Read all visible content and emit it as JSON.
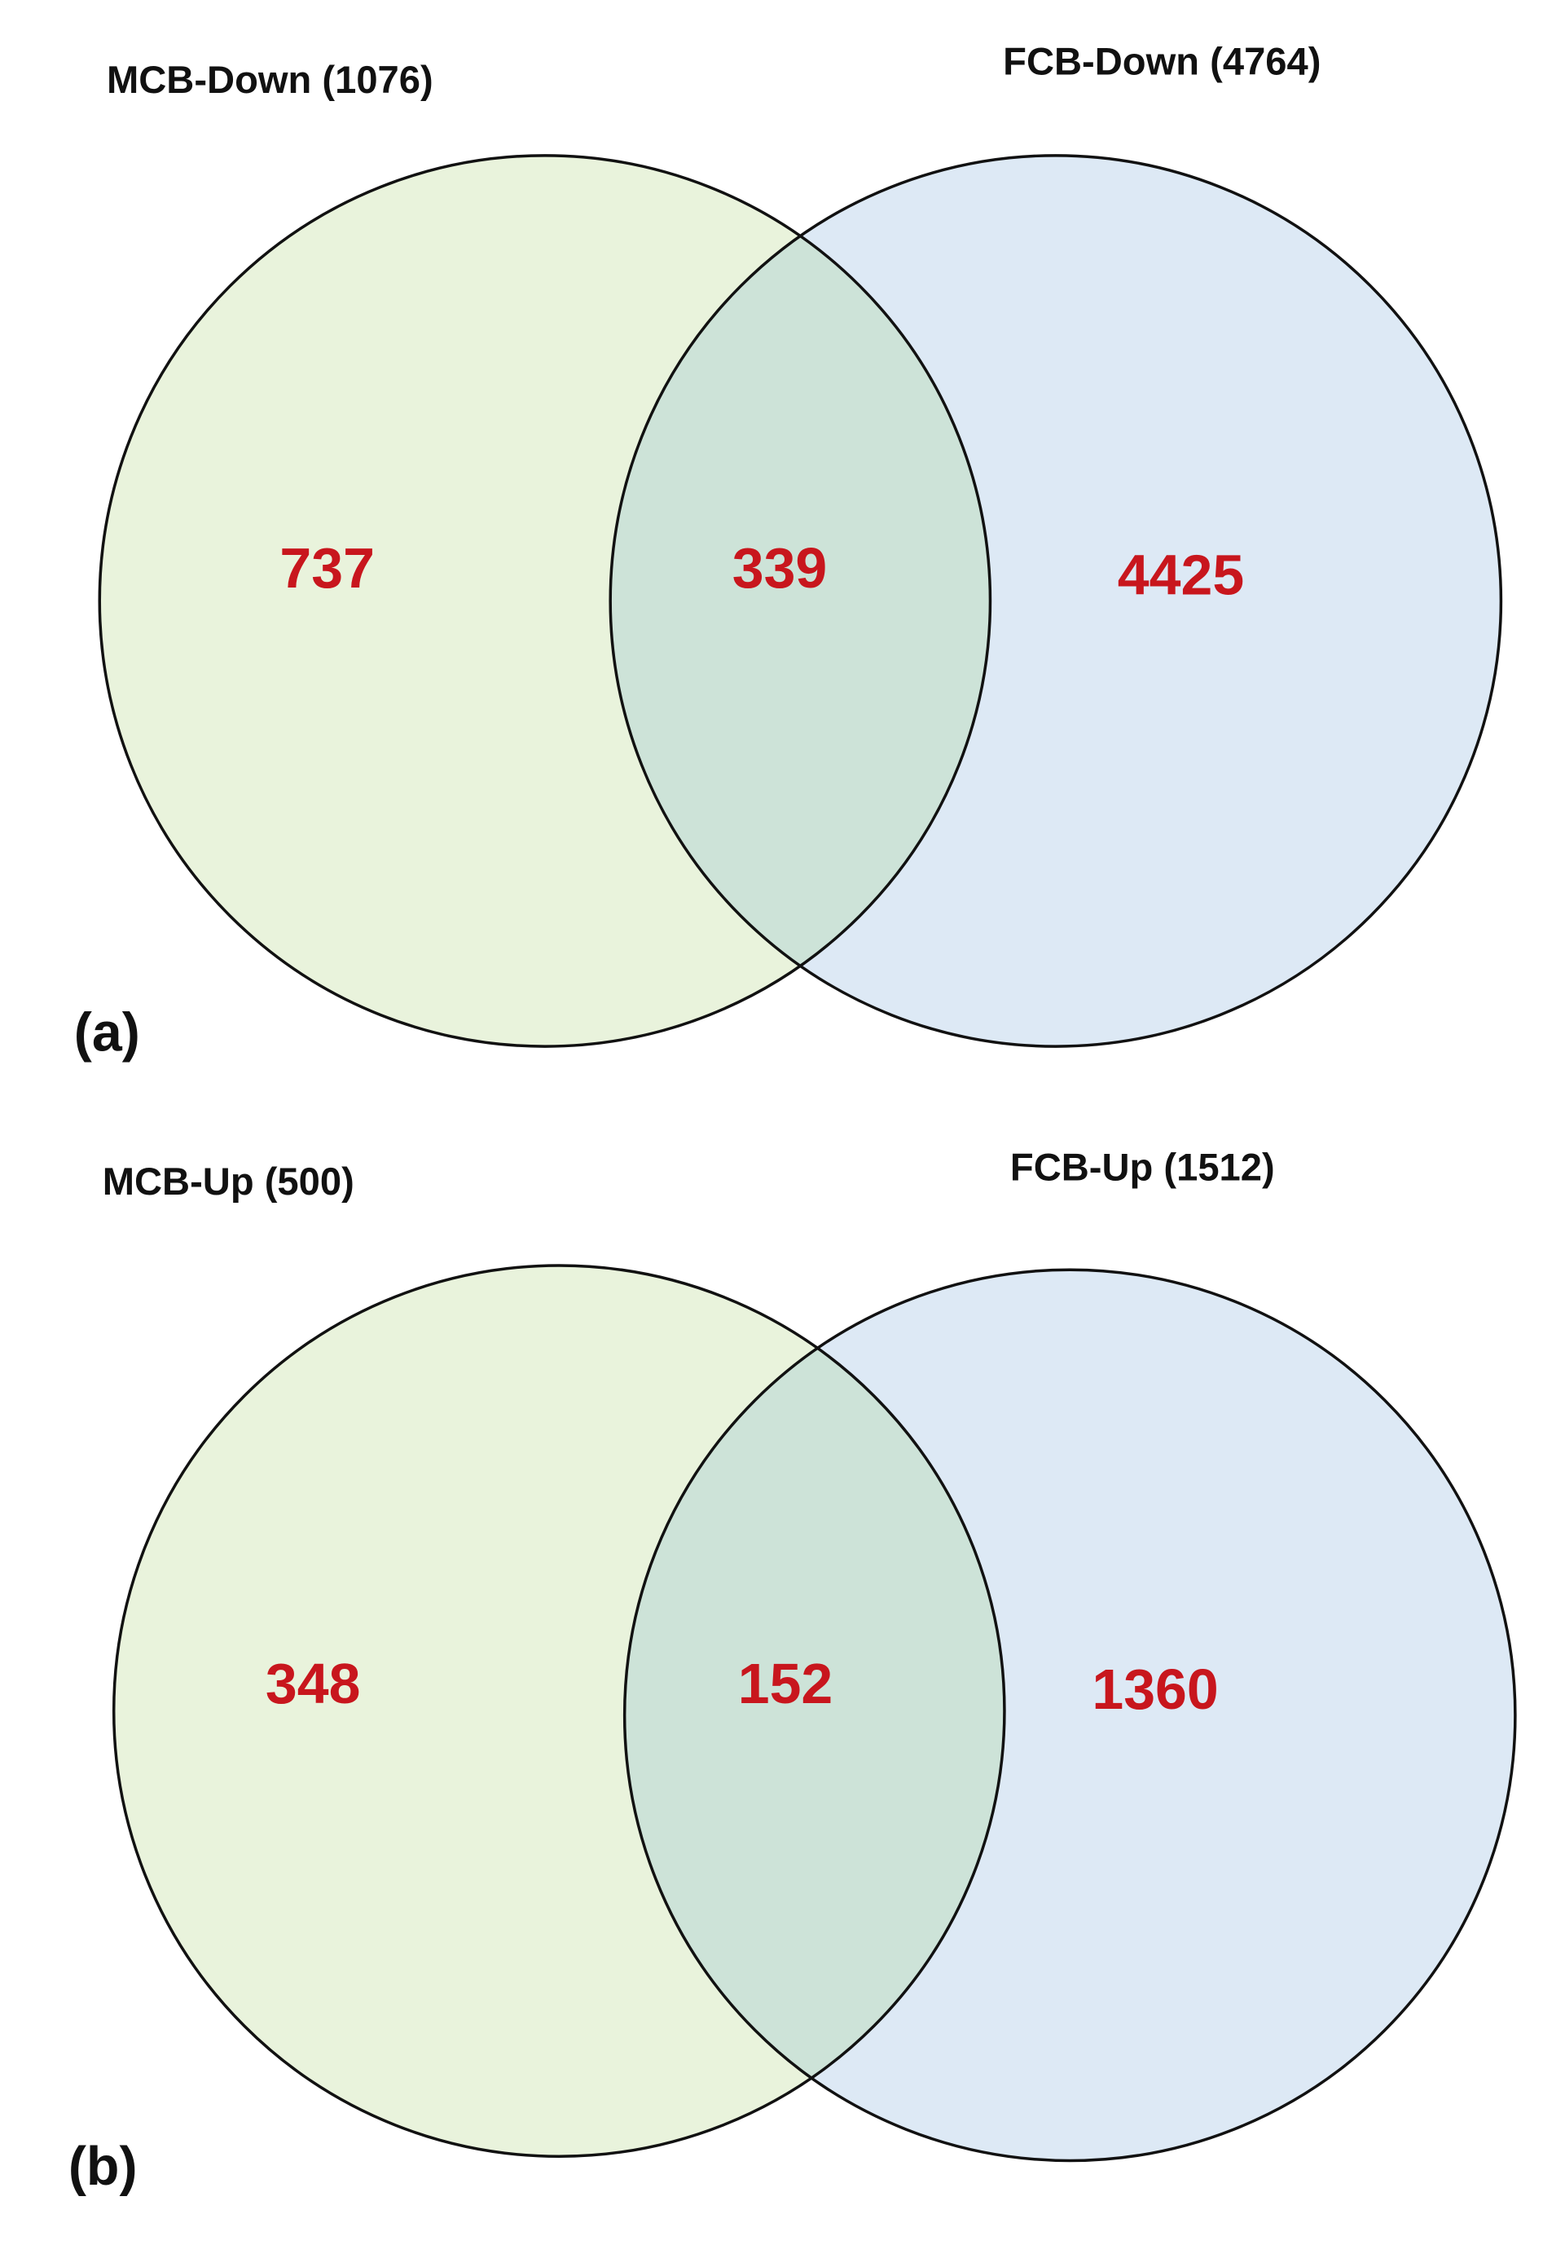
{
  "chart_data": [
    {
      "type": "venn",
      "panel": "(a)",
      "sets": [
        "MCB-Down (1076)",
        "FCB-Down (4764)"
      ],
      "colors": [
        "#e9f3dc",
        "#dde9f5"
      ],
      "overlap_color": "#cde3d8",
      "values": [
        737,
        339,
        4425
      ]
    },
    {
      "type": "venn",
      "panel": "(b)",
      "sets": [
        "MCB-Up (500)",
        "FCB-Up (1512)"
      ],
      "colors": [
        "#e9f3dc",
        "#dde9f5"
      ],
      "overlap_color": "#cde3d8",
      "values": [
        348,
        152,
        1360
      ]
    }
  ]
}
